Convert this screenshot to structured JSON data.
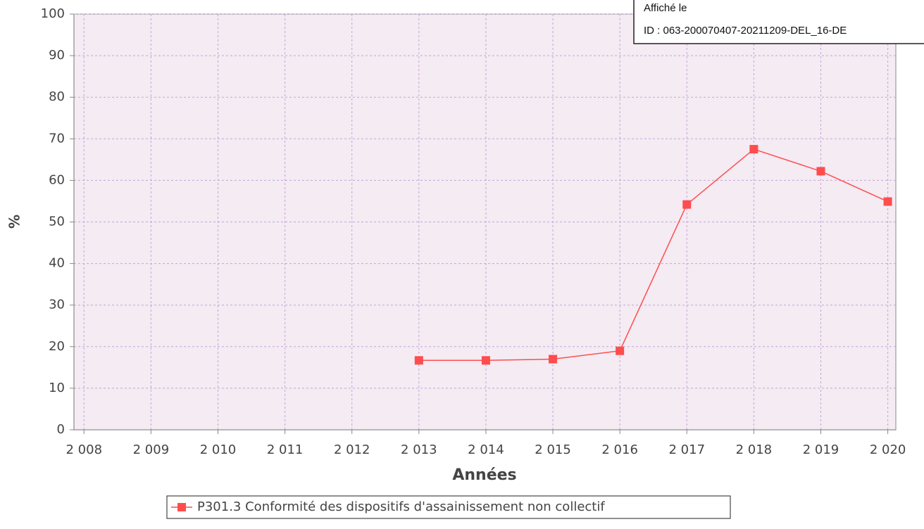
{
  "chart_data": {
    "type": "line",
    "xlabel": "Années",
    "ylabel": "%",
    "x": [
      2013,
      2014,
      2015,
      2016,
      2017,
      2018,
      2019,
      2020
    ],
    "series": [
      {
        "name": "P301.3 Conformité des dispositifs d'assainissement non collectif",
        "color": "#ff4d4d",
        "values": [
          16.7,
          16.7,
          17,
          19,
          54.2,
          67.5,
          62.2,
          54.9
        ]
      }
    ],
    "xlim": [
      2007.85,
      2020.12
    ],
    "xticks": [
      {
        "value": 2008,
        "label": "2 008"
      },
      {
        "value": 2009,
        "label": "2 009"
      },
      {
        "value": 2010,
        "label": "2 010"
      },
      {
        "value": 2011,
        "label": "2 011"
      },
      {
        "value": 2012,
        "label": "2 012"
      },
      {
        "value": 2013,
        "label": "2 013"
      },
      {
        "value": 2014,
        "label": "2 014"
      },
      {
        "value": 2015,
        "label": "2 015"
      },
      {
        "value": 2016,
        "label": "2 016"
      },
      {
        "value": 2017,
        "label": "2 017"
      },
      {
        "value": 2018,
        "label": "2 018"
      },
      {
        "value": 2019,
        "label": "2 019"
      },
      {
        "value": 2020,
        "label": "2 020"
      }
    ],
    "ylim": [
      0,
      100
    ],
    "yticks": [
      0,
      10,
      20,
      30,
      40,
      50,
      60,
      70,
      80,
      90,
      100
    ],
    "grid": true,
    "legend": "bottom"
  },
  "stamp": {
    "lines": [
      "Affiché le",
      "ID : 063-200070407-20211209-DEL_16-DE"
    ]
  }
}
